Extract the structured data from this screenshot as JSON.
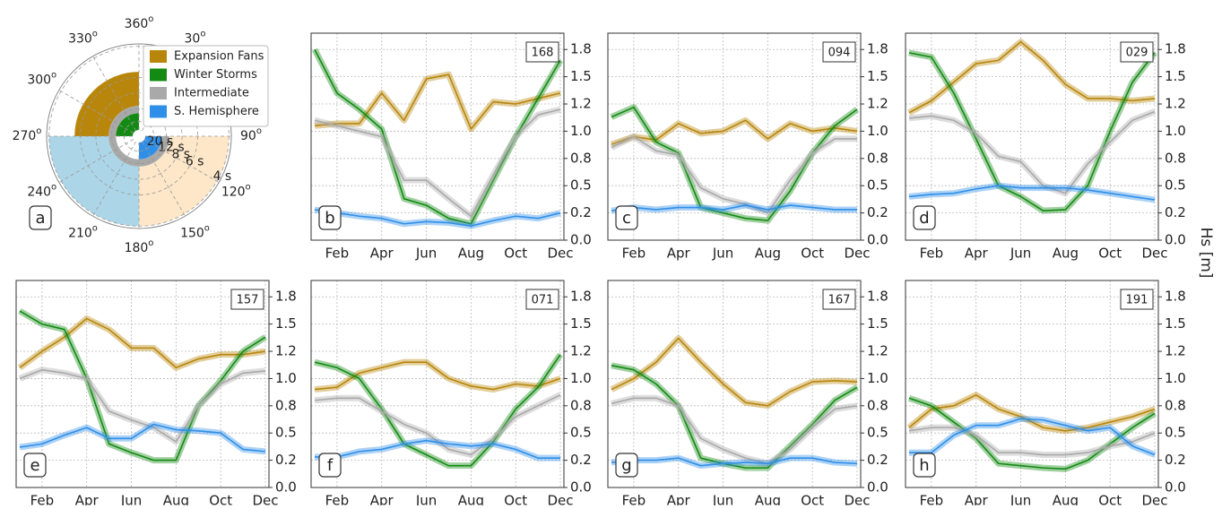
{
  "ylabel": "Hs [m]",
  "chart_data": [
    {
      "type": "polar",
      "panel_label": "a",
      "angle_unit": "o",
      "angle_ticks": [
        360,
        30,
        90,
        120,
        150,
        180,
        210,
        240,
        270,
        300,
        330
      ],
      "rlim": [
        3.9,
        100
      ],
      "rticks": [
        {
          "value": 20,
          "label": "20 s"
        },
        {
          "value": 12,
          "label": "12 s"
        },
        {
          "value": 8,
          "label": "8 s"
        },
        {
          "value": 6,
          "label": "6 s"
        },
        {
          "value": 4,
          "label": "4 s"
        }
      ],
      "legend": [
        {
          "name": "Expansion Fans",
          "color": "#b8860b"
        },
        {
          "name": "Winter Storms",
          "color": "#138a13"
        },
        {
          "name": "Intermediate",
          "color": "#a9a9a9"
        },
        {
          "name": "S. Hemisphere",
          "color": "#2f8fe8"
        }
      ],
      "wedges": [
        {
          "color": "#fde7c8",
          "theta": [
            90,
            180
          ],
          "period": [
            4,
            11
          ]
        },
        {
          "color": "#acd6e8",
          "theta": [
            180,
            270
          ],
          "period": [
            4,
            11
          ]
        },
        {
          "color": "#b8860b",
          "theta": [
            270,
            360
          ],
          "period": [
            5.5,
            11
          ]
        },
        {
          "color": "#a9a9a9",
          "theta": [
            90,
            360
          ],
          "period": [
            11,
            14
          ]
        },
        {
          "color": "#138a13",
          "theta": [
            270,
            360
          ],
          "period": [
            14,
            60
          ]
        },
        {
          "color": "#2f8fe8",
          "theta": [
            90,
            180
          ],
          "period": [
            14,
            60
          ]
        }
      ]
    },
    {
      "type": "line",
      "panel_label": "b",
      "station": "168",
      "categories": [
        null,
        "Feb",
        null,
        "Apr",
        null,
        "Jun",
        null,
        "Aug",
        null,
        "Oct",
        null,
        "Dec"
      ],
      "ylim": [
        0,
        1.9
      ],
      "yticks": [
        {
          "value": 0,
          "label": "0.0"
        },
        {
          "value": 0.25,
          "label": "0.2"
        },
        0.5,
        {
          "value": 0.75,
          "label": "0.8"
        },
        {
          "value": 1,
          "label": "1.0"
        },
        {
          "value": 1.25,
          "label": "1.2"
        },
        1.5,
        {
          "value": 1.75,
          "label": "1.8"
        }
      ],
      "grid": true,
      "series": [
        {
          "color": "#b8860b",
          "values": [
            1.05,
            1.07,
            1.07,
            1.35,
            1.1,
            1.48,
            1.52,
            1.02,
            1.27,
            1.25,
            1.3,
            1.35
          ]
        },
        {
          "color": "#138a13",
          "values": [
            1.75,
            1.35,
            1.2,
            1.02,
            0.38,
            0.32,
            0.2,
            0.15,
            0.55,
            0.95,
            1.3,
            1.65
          ]
        },
        {
          "color": "#a9a9a9",
          "values": [
            1.1,
            1.05,
            1.0,
            0.95,
            0.55,
            0.55,
            0.38,
            0.22,
            0.6,
            0.95,
            1.15,
            1.2
          ]
        },
        {
          "color": "#2f8fe8",
          "values": [
            0.28,
            0.25,
            0.22,
            0.2,
            0.15,
            0.17,
            0.16,
            0.13,
            0.18,
            0.22,
            0.2,
            0.25
          ]
        }
      ]
    },
    {
      "type": "line",
      "panel_label": "c",
      "station": "094",
      "categories": [
        null,
        "Feb",
        null,
        "Apr",
        null,
        "Jun",
        null,
        "Aug",
        null,
        "Oct",
        null,
        "Dec"
      ],
      "ylim": [
        0,
        1.9
      ],
      "yticks": [
        {
          "value": 0,
          "label": "0.0"
        },
        {
          "value": 0.25,
          "label": "0.2"
        },
        0.5,
        {
          "value": 0.75,
          "label": "0.8"
        },
        {
          "value": 1,
          "label": "1.0"
        },
        {
          "value": 1.25,
          "label": "1.2"
        },
        1.5,
        {
          "value": 1.75,
          "label": "1.8"
        }
      ],
      "grid": true,
      "series": [
        {
          "color": "#b8860b",
          "values": [
            0.88,
            0.95,
            0.92,
            1.07,
            0.98,
            1.0,
            1.1,
            0.93,
            1.07,
            1.0,
            1.03,
            1.0
          ]
        },
        {
          "color": "#138a13",
          "values": [
            1.13,
            1.22,
            0.9,
            0.8,
            0.3,
            0.25,
            0.2,
            0.18,
            0.45,
            0.8,
            1.05,
            1.2
          ]
        },
        {
          "color": "#a9a9a9",
          "values": [
            0.85,
            0.95,
            0.82,
            0.78,
            0.48,
            0.38,
            0.33,
            0.25,
            0.55,
            0.8,
            0.93,
            0.93
          ]
        },
        {
          "color": "#2f8fe8",
          "values": [
            0.27,
            0.3,
            0.28,
            0.3,
            0.3,
            0.28,
            0.32,
            0.28,
            0.32,
            0.3,
            0.28,
            0.28
          ]
        }
      ]
    },
    {
      "type": "line",
      "panel_label": "d",
      "station": "029",
      "categories": [
        null,
        "Feb",
        null,
        "Apr",
        null,
        "Jun",
        null,
        "Aug",
        null,
        "Oct",
        null,
        "Dec"
      ],
      "ylim": [
        0,
        1.9
      ],
      "yticks": [
        {
          "value": 0,
          "label": "0.0"
        },
        {
          "value": 0.25,
          "label": "0.2"
        },
        0.5,
        {
          "value": 0.75,
          "label": "0.8"
        },
        {
          "value": 1,
          "label": "1.0"
        },
        {
          "value": 1.25,
          "label": "1.2"
        },
        1.5,
        {
          "value": 1.75,
          "label": "1.8"
        }
      ],
      "grid": true,
      "series": [
        {
          "color": "#b8860b",
          "values": [
            1.17,
            1.28,
            1.45,
            1.62,
            1.65,
            1.82,
            1.65,
            1.43,
            1.3,
            1.3,
            1.28,
            1.3
          ]
        },
        {
          "color": "#138a13",
          "values": [
            1.72,
            1.68,
            1.35,
            0.93,
            0.5,
            0.4,
            0.27,
            0.28,
            0.5,
            1.0,
            1.45,
            1.72
          ]
        },
        {
          "color": "#a9a9a9",
          "values": [
            1.12,
            1.14,
            1.1,
            0.98,
            0.77,
            0.72,
            0.5,
            0.43,
            0.7,
            0.9,
            1.1,
            1.18
          ]
        },
        {
          "color": "#2f8fe8",
          "values": [
            0.4,
            0.42,
            0.43,
            0.47,
            0.5,
            0.48,
            0.48,
            0.48,
            0.46,
            0.43,
            0.4,
            0.37
          ]
        }
      ]
    },
    {
      "type": "line",
      "panel_label": "e",
      "station": "157",
      "categories": [
        null,
        "Feb",
        null,
        "Apr",
        null,
        "Jun",
        null,
        "Aug",
        null,
        "Oct",
        null,
        "Dec"
      ],
      "ylim": [
        0,
        1.9
      ],
      "yticks": [
        {
          "value": 0,
          "label": "0.0"
        },
        {
          "value": 0.25,
          "label": "0.2"
        },
        0.5,
        {
          "value": 0.75,
          "label": "0.8"
        },
        {
          "value": 1,
          "label": "1.0"
        },
        {
          "value": 1.25,
          "label": "1.2"
        },
        1.5,
        {
          "value": 1.75,
          "label": "1.8"
        }
      ],
      "grid": true,
      "series": [
        {
          "color": "#b8860b",
          "values": [
            1.1,
            1.25,
            1.38,
            1.55,
            1.45,
            1.28,
            1.28,
            1.1,
            1.18,
            1.22,
            1.22,
            1.25
          ]
        },
        {
          "color": "#138a13",
          "values": [
            1.62,
            1.5,
            1.45,
            1.0,
            0.4,
            0.32,
            0.25,
            0.25,
            0.75,
            0.98,
            1.25,
            1.38
          ]
        },
        {
          "color": "#a9a9a9",
          "values": [
            1.0,
            1.08,
            1.05,
            1.0,
            0.7,
            0.62,
            0.55,
            0.42,
            0.75,
            0.95,
            1.05,
            1.07
          ]
        },
        {
          "color": "#2f8fe8",
          "values": [
            0.37,
            0.4,
            0.48,
            0.55,
            0.45,
            0.45,
            0.58,
            0.53,
            0.52,
            0.5,
            0.35,
            0.33
          ]
        }
      ]
    },
    {
      "type": "line",
      "panel_label": "f",
      "station": "071",
      "categories": [
        null,
        "Feb",
        null,
        "Apr",
        null,
        "Jun",
        null,
        "Aug",
        null,
        "Oct",
        null,
        "Dec"
      ],
      "ylim": [
        0,
        1.9
      ],
      "yticks": [
        {
          "value": 0,
          "label": "0.0"
        },
        {
          "value": 0.25,
          "label": "0.2"
        },
        0.5,
        {
          "value": 0.75,
          "label": "0.8"
        },
        {
          "value": 1,
          "label": "1.0"
        },
        {
          "value": 1.25,
          "label": "1.2"
        },
        1.5,
        {
          "value": 1.75,
          "label": "1.8"
        }
      ],
      "grid": true,
      "series": [
        {
          "color": "#b8860b",
          "values": [
            0.9,
            0.92,
            1.05,
            1.1,
            1.15,
            1.15,
            1.0,
            0.93,
            0.9,
            0.95,
            0.93,
            1.0
          ]
        },
        {
          "color": "#138a13",
          "values": [
            1.15,
            1.1,
            1.0,
            0.72,
            0.4,
            0.3,
            0.2,
            0.2,
            0.42,
            0.72,
            0.92,
            1.22
          ]
        },
        {
          "color": "#a9a9a9",
          "values": [
            0.8,
            0.82,
            0.82,
            0.7,
            0.58,
            0.5,
            0.35,
            0.3,
            0.45,
            0.65,
            0.75,
            0.85
          ]
        },
        {
          "color": "#2f8fe8",
          "values": [
            0.28,
            0.28,
            0.33,
            0.35,
            0.4,
            0.43,
            0.4,
            0.38,
            0.4,
            0.35,
            0.27,
            0.27
          ]
        }
      ]
    },
    {
      "type": "line",
      "panel_label": "g",
      "station": "167",
      "categories": [
        null,
        "Feb",
        null,
        "Apr",
        null,
        "Jun",
        null,
        "Aug",
        null,
        "Oct",
        null,
        "Dec"
      ],
      "ylim": [
        0,
        1.9
      ],
      "yticks": [
        {
          "value": 0,
          "label": "0.0"
        },
        {
          "value": 0.25,
          "label": "0.2"
        },
        0.5,
        {
          "value": 0.75,
          "label": "0.8"
        },
        {
          "value": 1,
          "label": "1.0"
        },
        {
          "value": 1.25,
          "label": "1.2"
        },
        1.5,
        {
          "value": 1.75,
          "label": "1.8"
        }
      ],
      "grid": true,
      "series": [
        {
          "color": "#b8860b",
          "values": [
            0.9,
            1.0,
            1.15,
            1.37,
            1.15,
            0.95,
            0.78,
            0.75,
            0.88,
            0.97,
            0.98,
            0.97
          ]
        },
        {
          "color": "#138a13",
          "values": [
            1.12,
            1.08,
            0.95,
            0.75,
            0.27,
            0.22,
            0.18,
            0.18,
            0.38,
            0.58,
            0.8,
            0.92
          ]
        },
        {
          "color": "#a9a9a9",
          "values": [
            0.77,
            0.82,
            0.82,
            0.75,
            0.45,
            0.35,
            0.27,
            0.22,
            0.35,
            0.55,
            0.72,
            0.75
          ]
        },
        {
          "color": "#2f8fe8",
          "values": [
            0.23,
            0.25,
            0.25,
            0.27,
            0.2,
            0.22,
            0.23,
            0.22,
            0.27,
            0.27,
            0.23,
            0.22
          ]
        }
      ]
    },
    {
      "type": "line",
      "panel_label": "h",
      "station": "191",
      "categories": [
        null,
        "Feb",
        null,
        "Apr",
        null,
        "Jun",
        null,
        "Aug",
        null,
        "Oct",
        null,
        "Dec"
      ],
      "ylim": [
        0,
        1.9
      ],
      "yticks": [
        {
          "value": 0,
          "label": "0.0"
        },
        {
          "value": 0.25,
          "label": "0.2"
        },
        0.5,
        {
          "value": 0.75,
          "label": "0.8"
        },
        {
          "value": 1,
          "label": "1.0"
        },
        {
          "value": 1.25,
          "label": "1.2"
        },
        1.5,
        {
          "value": 1.75,
          "label": "1.8"
        }
      ],
      "grid": true,
      "series": [
        {
          "color": "#b8860b",
          "values": [
            0.55,
            0.72,
            0.75,
            0.85,
            0.72,
            0.65,
            0.55,
            0.52,
            0.55,
            0.6,
            0.65,
            0.72
          ]
        },
        {
          "color": "#138a13",
          "values": [
            0.82,
            0.75,
            0.6,
            0.45,
            0.22,
            0.2,
            0.18,
            0.17,
            0.25,
            0.4,
            0.55,
            0.68
          ]
        },
        {
          "color": "#a9a9a9",
          "values": [
            0.52,
            0.55,
            0.55,
            0.48,
            0.32,
            0.32,
            0.3,
            0.3,
            0.32,
            0.38,
            0.42,
            0.5
          ]
        },
        {
          "color": "#2f8fe8",
          "values": [
            0.32,
            0.32,
            0.48,
            0.57,
            0.57,
            0.63,
            0.62,
            0.57,
            0.52,
            0.55,
            0.38,
            0.3
          ]
        }
      ]
    }
  ]
}
